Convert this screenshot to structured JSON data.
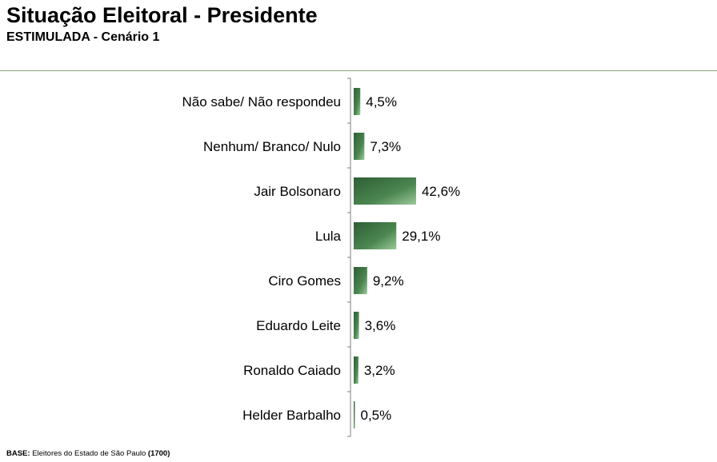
{
  "header": {
    "title": "Situação Eleitoral - Presidente",
    "subtitle": "ESTIMULADA - Cenário 1"
  },
  "footer": {
    "base_label": "BASE:",
    "base_text": "Eleitores do Estado de São Paulo",
    "base_count": "(1700)"
  },
  "colors": {
    "bar_dark": "#2f5e36",
    "bar_mid": "#4b8650",
    "bar_light": "#9cc99b",
    "axis": "#7f7f7f",
    "header_rule": "#8aa383"
  },
  "chart_data": {
    "type": "bar",
    "orientation": "horizontal",
    "categories": [
      "Não sabe/ Não respondeu",
      "Nenhum/ Branco/ Nulo",
      "Jair Bolsonaro",
      "Lula",
      "Ciro Gomes",
      "Eduardo Leite",
      "Ronaldo Caiado",
      "Helder Barbalho"
    ],
    "values": [
      4.5,
      7.3,
      42.6,
      29.1,
      9.2,
      3.6,
      3.2,
      0.5
    ],
    "value_labels": [
      "4,5%",
      "7,3%",
      "42,6%",
      "29,1%",
      "9,2%",
      "3,6%",
      "3,2%",
      "0,5%"
    ],
    "unit": "%",
    "xlim": [
      0,
      100
    ],
    "grid": false,
    "legend": "none"
  }
}
